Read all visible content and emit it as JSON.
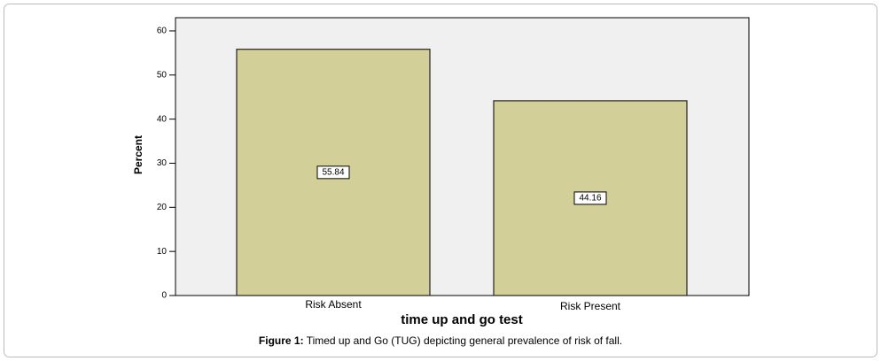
{
  "chart_data": {
    "type": "bar",
    "x_label": "time up and go test",
    "y_label": "Percent",
    "categories": [
      "Risk Absent",
      "Risk Present"
    ],
    "values": [
      55.84,
      44.16
    ],
    "color": "#d3cf99",
    "ylim": [
      0,
      63
    ],
    "yticks": [
      0,
      10,
      20,
      30,
      40,
      50,
      60
    ],
    "grid": false,
    "value_label_boxes": true
  },
  "figure_caption": {
    "label": "Figure 1:",
    "text": "Timed up and Go (TUG) depicting general prevalence of risk of fall."
  }
}
